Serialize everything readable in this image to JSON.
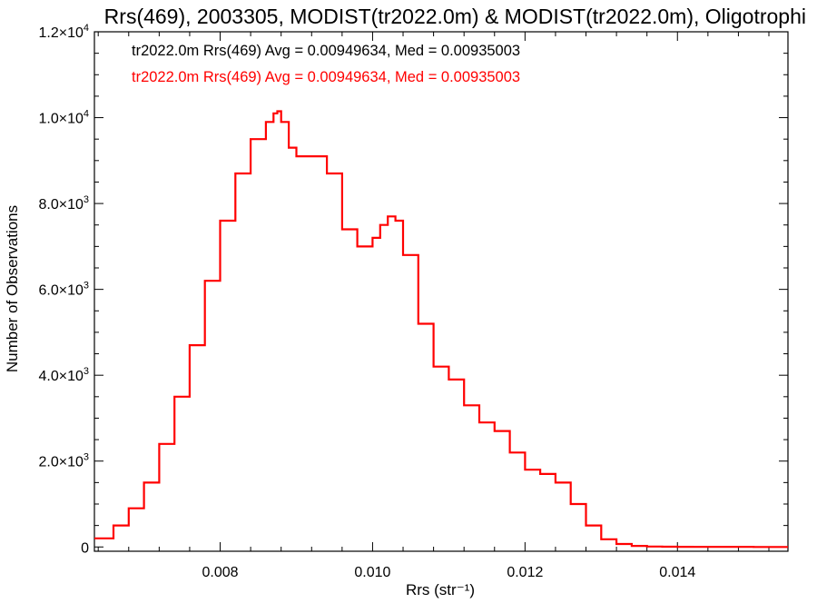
{
  "chart_data": {
    "type": "line",
    "step": true,
    "title": "Rrs(469), 2003305, MODIST(tr2022.0m) & MODIST(tr2022.0m), Oligotrophi",
    "xlabel": "Rrs (str⁻¹)",
    "ylabel": "Number of Observations",
    "xlim": [
      0.00635,
      0.01545
    ],
    "ylim": [
      -100,
      12000
    ],
    "xticks": [
      {
        "value": 0.008,
        "label": "0.008"
      },
      {
        "value": 0.01,
        "label": "0.010"
      },
      {
        "value": 0.012,
        "label": "0.012"
      },
      {
        "value": 0.014,
        "label": "0.014"
      }
    ],
    "yticks": [
      {
        "value": 0,
        "mant": "0",
        "exp": ""
      },
      {
        "value": 2000,
        "mant": "2.0×10",
        "exp": "3"
      },
      {
        "value": 4000,
        "mant": "4.0×10",
        "exp": "3"
      },
      {
        "value": 6000,
        "mant": "6.0×10",
        "exp": "3"
      },
      {
        "value": 8000,
        "mant": "8.0×10",
        "exp": "3"
      },
      {
        "value": 10000,
        "mant": "1.0×10",
        "exp": "4"
      },
      {
        "value": 12000,
        "mant": "1.2×10",
        "exp": "4"
      }
    ],
    "legend": [
      {
        "text": "tr2022.0m Rrs(469) Avg = 0.00949634, Med = 0.00935003",
        "color": "#000000"
      },
      {
        "text": "tr2022.0m Rrs(469) Avg = 0.00949634, Med = 0.00935003",
        "color": "#ff0000"
      }
    ],
    "legend_position": "top-left",
    "series": [
      {
        "color": "#ff0000",
        "x": [
          0.00635,
          0.0066,
          0.0068,
          0.007,
          0.0072,
          0.0074,
          0.0076,
          0.0078,
          0.008,
          0.0082,
          0.0084,
          0.0086,
          0.0087,
          0.00875,
          0.0088,
          0.0089,
          0.009,
          0.0092,
          0.0094,
          0.0096,
          0.0098,
          0.0099,
          0.01,
          0.0101,
          0.0102,
          0.0103,
          0.0104,
          0.0106,
          0.0108,
          0.011,
          0.0112,
          0.0114,
          0.0116,
          0.0118,
          0.012,
          0.0122,
          0.0124,
          0.0126,
          0.0128,
          0.013,
          0.0132,
          0.0134,
          0.0136,
          0.0138,
          0.014,
          0.0142,
          0.0145,
          0.015,
          0.01545
        ],
        "y": [
          200,
          500,
          900,
          1500,
          2400,
          3500,
          4700,
          6200,
          7600,
          8700,
          9500,
          9900,
          10100,
          10150,
          9900,
          9300,
          9100,
          9100,
          8700,
          7400,
          7000,
          7000,
          7200,
          7500,
          7700,
          7600,
          6800,
          5200,
          4200,
          3900,
          3300,
          2900,
          2700,
          2200,
          1800,
          1700,
          1500,
          1000,
          500,
          180,
          70,
          25,
          10,
          5,
          3,
          2,
          1,
          0,
          0
        ]
      }
    ]
  }
}
